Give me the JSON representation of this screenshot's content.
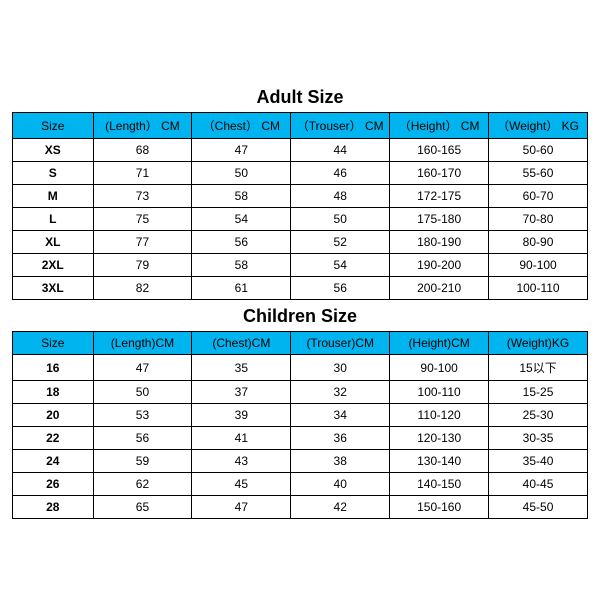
{
  "styling": {
    "header_bg": "#00b4f0",
    "border_color": "#000000",
    "title_fontsize_pt": 14,
    "cell_fontsize_pt": 9,
    "font_family": "Arial",
    "background": "#ffffff"
  },
  "adult": {
    "title": "Adult Size",
    "columns": [
      "Size",
      "(Length） CM",
      "（Chest） CM",
      "（Trouser） CM",
      "（Height） CM",
      "（Weight） KG"
    ],
    "rows": [
      [
        "XS",
        "68",
        "47",
        "44",
        "160-165",
        "50-60"
      ],
      [
        "S",
        "71",
        "50",
        "46",
        "160-170",
        "55-60"
      ],
      [
        "M",
        "73",
        "58",
        "48",
        "172-175",
        "60-70"
      ],
      [
        "L",
        "75",
        "54",
        "50",
        "175-180",
        "70-80"
      ],
      [
        "XL",
        "77",
        "56",
        "52",
        "180-190",
        "80-90"
      ],
      [
        "2XL",
        "79",
        "58",
        "54",
        "190-200",
        "90-100"
      ],
      [
        "3XL",
        "82",
        "61",
        "56",
        "200-210",
        "100-110"
      ]
    ]
  },
  "children": {
    "title": "Children Size",
    "columns": [
      "Size",
      "(Length)CM",
      "(Chest)CM",
      "(Trouser)CM",
      "(Height)CM",
      "(Weight)KG"
    ],
    "rows": [
      [
        "16",
        "47",
        "35",
        "30",
        "90-100",
        "15以下"
      ],
      [
        "18",
        "50",
        "37",
        "32",
        "100-110",
        "15-25"
      ],
      [
        "20",
        "53",
        "39",
        "34",
        "110-120",
        "25-30"
      ],
      [
        "22",
        "56",
        "41",
        "36",
        "120-130",
        "30-35"
      ],
      [
        "24",
        "59",
        "43",
        "38",
        "130-140",
        "35-40"
      ],
      [
        "26",
        "62",
        "45",
        "40",
        "140-150",
        "40-45"
      ],
      [
        "28",
        "65",
        "47",
        "42",
        "150-160",
        "45-50"
      ]
    ]
  }
}
